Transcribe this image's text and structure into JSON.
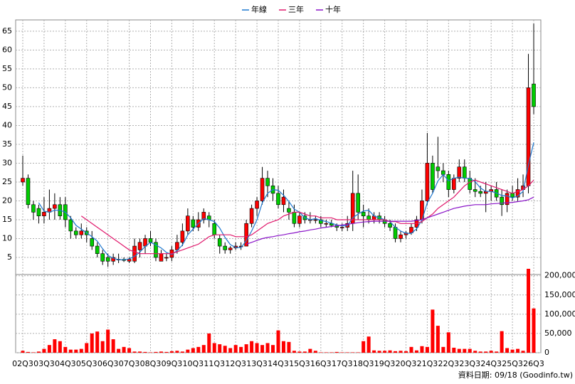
{
  "chart_data": {
    "type": "candlestick",
    "categories": [
      "02Q3",
      null,
      null,
      null,
      "03Q3",
      null,
      null,
      null,
      "04Q3",
      null,
      null,
      null,
      "05Q3",
      null,
      null,
      null,
      "06Q3",
      null,
      null,
      null,
      "07Q3",
      null,
      null,
      null,
      "08Q3",
      null,
      null,
      null,
      "09Q3",
      null,
      null,
      null,
      "10Q3",
      null,
      null,
      null,
      "11Q3",
      null,
      null,
      null,
      "12Q3",
      null,
      null,
      null,
      "13Q3",
      null,
      null,
      null,
      "14Q3",
      null,
      null,
      null,
      "15Q3",
      null,
      null,
      null,
      "16Q3",
      null,
      null,
      null,
      "17Q3",
      null,
      null,
      null,
      "18Q3",
      null,
      null,
      null,
      "19Q3",
      null,
      null,
      null,
      "20Q3",
      null,
      null,
      null,
      "21Q3",
      null,
      null,
      null,
      "22Q3",
      null,
      null,
      null,
      "23Q3",
      null,
      null,
      null,
      "24Q3",
      null,
      null,
      null,
      "25Q3",
      null,
      null,
      null,
      "26Q3"
    ],
    "ohlc": [
      [
        25,
        32,
        24,
        26
      ],
      [
        26,
        27,
        18,
        19
      ],
      [
        19,
        20,
        15,
        17
      ],
      [
        18,
        19,
        14,
        16
      ],
      [
        16,
        21,
        14,
        17
      ],
      [
        17,
        23,
        15,
        18
      ],
      [
        18,
        22,
        15,
        19
      ],
      [
        19,
        21,
        15,
        16
      ],
      [
        19,
        21,
        13,
        15
      ],
      [
        15,
        16,
        10,
        12
      ],
      [
        12,
        13,
        10,
        11
      ],
      [
        11,
        14,
        10,
        12
      ],
      [
        12,
        13,
        9,
        11
      ],
      [
        10,
        12,
        7,
        8
      ],
      [
        8,
        9,
        5,
        6
      ],
      [
        6,
        7,
        3,
        4
      ],
      [
        5,
        6,
        2.5,
        4
      ],
      [
        4,
        6,
        3,
        5
      ],
      [
        4.5,
        6,
        3.5,
        4.5
      ],
      [
        4.5,
        5,
        3.8,
        4.2
      ],
      [
        4,
        5,
        3.5,
        4.5
      ],
      [
        4,
        10,
        3.5,
        8
      ],
      [
        7,
        10,
        5,
        9
      ],
      [
        8,
        11,
        6,
        10
      ],
      [
        10,
        12,
        8,
        9
      ],
      [
        9,
        10,
        4,
        5
      ],
      [
        4,
        7,
        4,
        6
      ],
      [
        5,
        6,
        4,
        5
      ],
      [
        5,
        8,
        4,
        7
      ],
      [
        7,
        11,
        6,
        9
      ],
      [
        9,
        14,
        8,
        12
      ],
      [
        12,
        18,
        11,
        16
      ],
      [
        15,
        16,
        12,
        13
      ],
      [
        13,
        17,
        12,
        15
      ],
      [
        15,
        18,
        14,
        17
      ],
      [
        16,
        17,
        13,
        15
      ],
      [
        14,
        15,
        10,
        11
      ],
      [
        10,
        11,
        6,
        8
      ],
      [
        8,
        9,
        6,
        7
      ],
      [
        7,
        8,
        6,
        7.5
      ],
      [
        7.5,
        9,
        7,
        8
      ],
      [
        8,
        9,
        7,
        8
      ],
      [
        8,
        15,
        8,
        14
      ],
      [
        14,
        19,
        13,
        18
      ],
      [
        18,
        21,
        16,
        20
      ],
      [
        20,
        29,
        19,
        26
      ],
      [
        26,
        28,
        21,
        24
      ],
      [
        24,
        26,
        20,
        22
      ],
      [
        22,
        24,
        18,
        19
      ],
      [
        19,
        23,
        17,
        21
      ],
      [
        18,
        20,
        15,
        17
      ],
      [
        17,
        19,
        13,
        14
      ],
      [
        14,
        17,
        13,
        16
      ],
      [
        16,
        17,
        14,
        15
      ],
      [
        15,
        17,
        14,
        15
      ],
      [
        15,
        16,
        14,
        15
      ],
      [
        15,
        16,
        13,
        14
      ],
      [
        14,
        15,
        13,
        14
      ],
      [
        14,
        15,
        13,
        13.5
      ],
      [
        13.5,
        14,
        12,
        13
      ],
      [
        13,
        14,
        12,
        13
      ],
      [
        13,
        16,
        12,
        14
      ],
      [
        14,
        28,
        12,
        22
      ],
      [
        22,
        27,
        15,
        17
      ],
      [
        17,
        19,
        13,
        16
      ],
      [
        16,
        18,
        14,
        15
      ],
      [
        15,
        17,
        14,
        16
      ],
      [
        16,
        17,
        14,
        15
      ],
      [
        15,
        16,
        13,
        14
      ],
      [
        14,
        15,
        12,
        13
      ],
      [
        13,
        14,
        9,
        10
      ],
      [
        10,
        12,
        9,
        11
      ],
      [
        11,
        12,
        10,
        11.5
      ],
      [
        11.5,
        14,
        11,
        13
      ],
      [
        13,
        16,
        12,
        15
      ],
      [
        15,
        23,
        14,
        20
      ],
      [
        20,
        38,
        19,
        30
      ],
      [
        30,
        32,
        22,
        23
      ],
      [
        29,
        37,
        26,
        28
      ],
      [
        28,
        30,
        25,
        27
      ],
      [
        27,
        28,
        21,
        23
      ],
      [
        23,
        27,
        22,
        26
      ],
      [
        26,
        31,
        25,
        29
      ],
      [
        29,
        31,
        25,
        26
      ],
      [
        26,
        28,
        22,
        23
      ],
      [
        23,
        26,
        21,
        22.5
      ],
      [
        22.5,
        24,
        21,
        22
      ],
      [
        22,
        25,
        17,
        22.5
      ],
      [
        22.5,
        24,
        20,
        23
      ],
      [
        23,
        25,
        20,
        21
      ],
      [
        21,
        23,
        16,
        19
      ],
      [
        19,
        23,
        17,
        22
      ],
      [
        22,
        24,
        20,
        21
      ],
      [
        21,
        26,
        20,
        23
      ],
      [
        23,
        27,
        21,
        24
      ],
      [
        24,
        59,
        22,
        50
      ],
      [
        51,
        67,
        43,
        45
      ]
    ],
    "up_color": "#ff0000",
    "down_color": "#00cc00",
    "series": [
      {
        "name": "年線",
        "color": "#1e78d0",
        "values": [
          null,
          null,
          null,
          19.5,
          17.3,
          17,
          17.5,
          17.5,
          17,
          15.5,
          13.5,
          12.5,
          11.5,
          10.5,
          9.3,
          7.3,
          5.5,
          4.8,
          4.4,
          4.4,
          4.6,
          5.3,
          6.4,
          7.9,
          9,
          8.3,
          7.5,
          6.3,
          5.8,
          6.8,
          8.3,
          11,
          12.5,
          14,
          15.3,
          15,
          14.5,
          12.8,
          10.3,
          8.4,
          7.6,
          7.6,
          9.4,
          12,
          15,
          19.5,
          22,
          23,
          22.8,
          21.5,
          19.8,
          17.8,
          17,
          15.5,
          15,
          15.3,
          14.8,
          14.5,
          14.1,
          13.6,
          13.4,
          13.4,
          15.5,
          16.5,
          17.3,
          17.5,
          16,
          15.5,
          15,
          14.5,
          13,
          12,
          11.4,
          11.4,
          12.6,
          14.9,
          19.5,
          22,
          25.3,
          27,
          25.3,
          26,
          26.3,
          26,
          26,
          25.1,
          23.4,
          22.5,
          22.5,
          22.1,
          21.4,
          21.3,
          20.8,
          21.3,
          22.5,
          29.5,
          35.5
        ]
      },
      {
        "name": "三年",
        "color": "#e0186c",
        "values": [
          null,
          null,
          null,
          null,
          null,
          null,
          null,
          null,
          null,
          null,
          null,
          16,
          15,
          14,
          13,
          12,
          11,
          10,
          9,
          8,
          7,
          6.5,
          6,
          6,
          6,
          6,
          6,
          6,
          6,
          6.5,
          7,
          7.5,
          8,
          8.5,
          9.5,
          10.5,
          11,
          11,
          11,
          11,
          10.5,
          10.5,
          10.5,
          11,
          12,
          13,
          14,
          14.5,
          15,
          16,
          16.5,
          17,
          17,
          16.5,
          16,
          16,
          15.5,
          15.5,
          15.5,
          15,
          15,
          15,
          15,
          15,
          15,
          15,
          15,
          15,
          15,
          14.5,
          14.5,
          14,
          14,
          14,
          14,
          14.5,
          15.5,
          16.5,
          18,
          19,
          20,
          21,
          22.5,
          24,
          25,
          25.5,
          25,
          24.5,
          24,
          23.5,
          23,
          22.5,
          22,
          22.5,
          23,
          24,
          25.5
        ]
      },
      {
        "name": "十年",
        "color": "#8a14c8",
        "values": [
          null,
          null,
          null,
          null,
          null,
          null,
          null,
          null,
          null,
          null,
          null,
          null,
          null,
          null,
          null,
          null,
          null,
          null,
          null,
          null,
          null,
          null,
          null,
          null,
          null,
          null,
          null,
          null,
          null,
          null,
          null,
          null,
          null,
          null,
          null,
          null,
          null,
          null,
          null,
          null,
          null,
          null,
          8.5,
          9,
          9.5,
          10,
          10.3,
          10.5,
          10.8,
          11,
          11.3,
          11.5,
          11.8,
          12,
          12.3,
          12.5,
          12.8,
          13,
          13.2,
          13.4,
          13.6,
          13.8,
          14,
          14.2,
          14.4,
          14.5,
          14.6,
          14.6,
          14.6,
          14.6,
          14.6,
          14.6,
          14.6,
          14.6,
          14.8,
          15,
          15.5,
          16,
          16.5,
          17,
          17.5,
          18,
          18.3,
          18.6,
          18.8,
          19,
          19,
          19,
          19.2,
          19.3,
          19.4,
          19.5,
          19.6,
          19.8,
          20,
          20.3,
          21
        ]
      }
    ],
    "volume": [
      5000,
      2000,
      1000,
      3000,
      10000,
      20000,
      35000,
      30000,
      15000,
      8000,
      8000,
      10000,
      25000,
      50000,
      55000,
      30000,
      60000,
      35000,
      10000,
      15000,
      12000,
      3000,
      3000,
      2000,
      1000,
      2000,
      3000,
      2000,
      4000,
      5000,
      3000,
      8000,
      12000,
      15000,
      20000,
      50000,
      25000,
      22000,
      18000,
      12000,
      20000,
      15000,
      22000,
      30000,
      25000,
      20000,
      25000,
      20000,
      58000,
      30000,
      28000,
      5000,
      3000,
      3000,
      10000,
      5000,
      1000,
      1000,
      1000,
      2000,
      1000,
      1000,
      1000,
      1000,
      30000,
      42000,
      6000,
      5000,
      5000,
      6000,
      4000,
      5000,
      4000,
      15000,
      6000,
      17000,
      15000,
      112000,
      70000,
      15000,
      53000,
      13000,
      10000,
      10000,
      10000,
      5000,
      3000,
      3000,
      5000,
      3000,
      56000,
      12000,
      8000,
      10000,
      5000,
      218000,
      115000
    ],
    "volume_color": "#ff0000",
    "ylim": [
      0,
      68
    ],
    "yticks": [
      5,
      10,
      15,
      20,
      25,
      30,
      35,
      40,
      45,
      50,
      55,
      60,
      65
    ],
    "y2lim": [
      0,
      218000
    ],
    "y2ticks": [
      0,
      {
        "value": 50000,
        "label": "50,000"
      },
      {
        "value": 100000,
        "label": "100,000"
      },
      {
        "value": 150000,
        "label": "150,000"
      },
      {
        "value": 200000,
        "label": "200,000"
      }
    ],
    "grid": true,
    "legend": "top",
    "source": "資料日期: 09/18 (Goodinfo.tw)"
  }
}
